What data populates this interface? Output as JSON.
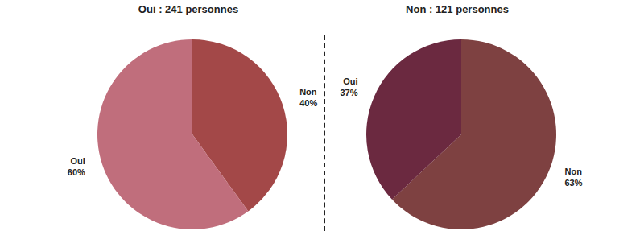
{
  "chart_data": [
    {
      "type": "pie",
      "title": "Oui : 241 personnes",
      "categories": [
        "Non",
        "Oui"
      ],
      "values": [
        40,
        60
      ],
      "value_labels": [
        "40%",
        "60%"
      ],
      "colors": [
        "#a34848",
        "#c06e7c"
      ],
      "data_labels": true
    },
    {
      "type": "pie",
      "title": "Non : 121 personnes",
      "categories": [
        "Non",
        "Oui"
      ],
      "values": [
        63,
        37
      ],
      "value_labels": [
        "63%",
        "37%"
      ],
      "colors": [
        "#7e4141",
        "#6b2940"
      ],
      "data_labels": true
    }
  ]
}
